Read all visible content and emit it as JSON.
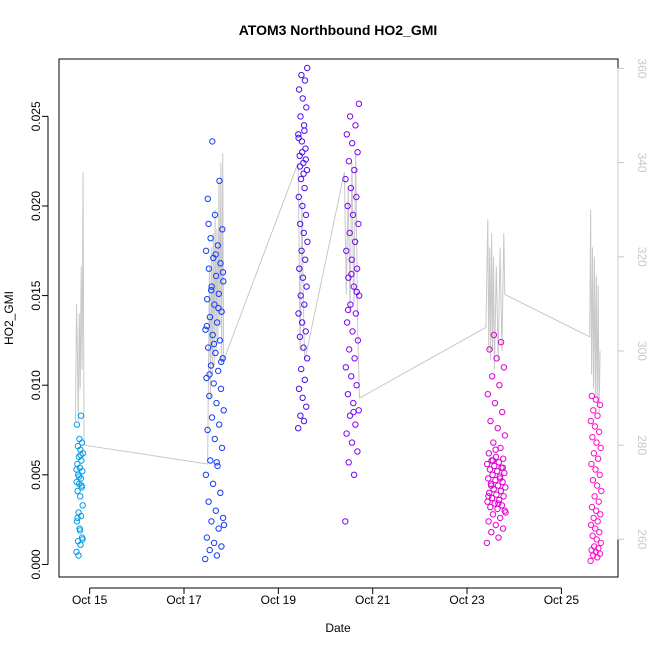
{
  "chart_data": {
    "type": "scatter",
    "title": "ATOM3 Northbound HO2_GMI",
    "xlabel": "Date",
    "ylabel": "HO2_GMI",
    "y2label": "",
    "x_ticks": [
      "Oct 15",
      "Oct 17",
      "Oct 19",
      "Oct 21",
      "Oct 23",
      "Oct 25"
    ],
    "x_tick_days": [
      15,
      17,
      19,
      21,
      23,
      25
    ],
    "xlim_days": [
      14.35,
      26.2
    ],
    "ylim": [
      -0.0007,
      0.0282
    ],
    "y_ticks": [
      "0.000",
      "0.005",
      "0.010",
      "0.015",
      "0.020",
      "0.025"
    ],
    "y_tick_values": [
      0,
      0.005,
      0.01,
      0.015,
      0.02,
      0.025
    ],
    "y2lim": [
      252,
      362
    ],
    "y2_ticks": [
      "260",
      "280",
      "300",
      "320",
      "340",
      "360"
    ],
    "y2_tick_values": [
      260,
      280,
      300,
      320,
      340,
      360
    ],
    "colors": {
      "axis": "#000000",
      "secondary_axis": "#c8c8c8",
      "line": "#c8c8c8",
      "gradient": [
        "#00a0e6",
        "#0050ff",
        "#4010e8",
        "#a000ff",
        "#e000d0",
        "#ff10c8"
      ]
    },
    "series": [
      {
        "role": "scatter",
        "groups": [
          {
            "day_range": [
              14.72,
              14.86
            ],
            "values": [
              0.0007,
              0.0011,
              0.0013,
              0.0015,
              0.002,
              0.0024,
              0.0027,
              0.0029,
              0.0033,
              0.0038,
              0.0041,
              0.0043,
              0.0045,
              0.0046,
              0.0048,
              0.005,
              0.0052,
              0.0054,
              0.0056,
              0.0058,
              0.006,
              0.0062,
              0.0064,
              0.0066,
              0.0068,
              0.007,
              0.0078,
              0.0083,
              0.0005,
              0.0014,
              0.0019,
              0.0026,
              0.0044,
              0.0049,
              0.0053,
              0.0061
            ]
          },
          {
            "day_range": [
              17.45,
              17.85
            ],
            "values": [
              0.0003,
              0.0005,
              0.0008,
              0.001,
              0.0012,
              0.0015,
              0.002,
              0.0024,
              0.0026,
              0.003,
              0.0035,
              0.004,
              0.0045,
              0.005,
              0.0055,
              0.0058,
              0.0065,
              0.007,
              0.0075,
              0.0078,
              0.0082,
              0.0086,
              0.009,
              0.0094,
              0.0098,
              0.0101,
              0.0104,
              0.0108,
              0.0111,
              0.0115,
              0.0118,
              0.0121,
              0.0125,
              0.0128,
              0.0131,
              0.0135,
              0.0138,
              0.0141,
              0.0145,
              0.0148,
              0.0151,
              0.0155,
              0.0158,
              0.0161,
              0.0165,
              0.0168,
              0.0171,
              0.0175,
              0.0178,
              0.0182,
              0.0187,
              0.0195,
              0.0204,
              0.0214,
              0.0236,
              0.0022,
              0.0057,
              0.0106,
              0.0113,
              0.0123,
              0.0133,
              0.0143,
              0.0153,
              0.0163,
              0.0173,
              0.019
            ]
          },
          {
            "day_range": [
              19.42,
              19.62
            ],
            "values": [
              0.0076,
              0.008,
              0.0083,
              0.0088,
              0.0093,
              0.0098,
              0.0103,
              0.0109,
              0.0115,
              0.0121,
              0.0127,
              0.013,
              0.0135,
              0.014,
              0.0145,
              0.015,
              0.0155,
              0.016,
              0.0165,
              0.017,
              0.0175,
              0.018,
              0.0185,
              0.019,
              0.0195,
              0.02,
              0.0205,
              0.021,
              0.0215,
              0.022,
              0.0224,
              0.0228,
              0.0232,
              0.0236,
              0.024,
              0.0245,
              0.025,
              0.0255,
              0.026,
              0.0265,
              0.027,
              0.0273,
              0.0277,
              0.0218,
              0.0222,
              0.0226,
              0.023,
              0.0238,
              0.0242
            ]
          },
          {
            "day_range": [
              20.42,
              20.72
            ],
            "values": [
              0.0024,
              0.005,
              0.0057,
              0.0063,
              0.0068,
              0.0073,
              0.0078,
              0.0083,
              0.0086,
              0.009,
              0.0095,
              0.01,
              0.0105,
              0.011,
              0.0115,
              0.012,
              0.0125,
              0.013,
              0.0135,
              0.014,
              0.0145,
              0.015,
              0.0155,
              0.016,
              0.0165,
              0.017,
              0.0175,
              0.018,
              0.0185,
              0.019,
              0.0195,
              0.02,
              0.0205,
              0.021,
              0.0215,
              0.022,
              0.0225,
              0.023,
              0.0235,
              0.024,
              0.0245,
              0.025,
              0.0257,
              0.0085,
              0.0142,
              0.0152,
              0.0162
            ]
          },
          {
            "day_range": [
              23.42,
              23.82
            ],
            "values": [
              0.0012,
              0.0015,
              0.0018,
              0.002,
              0.0022,
              0.0024,
              0.0026,
              0.0028,
              0.003,
              0.0031,
              0.0032,
              0.0033,
              0.0034,
              0.0035,
              0.0036,
              0.0037,
              0.0038,
              0.0039,
              0.004,
              0.0041,
              0.0042,
              0.0043,
              0.0044,
              0.0045,
              0.0046,
              0.0047,
              0.0048,
              0.0049,
              0.005,
              0.0051,
              0.0052,
              0.0053,
              0.0054,
              0.0055,
              0.0056,
              0.0057,
              0.0058,
              0.0059,
              0.006,
              0.0062,
              0.0065,
              0.0068,
              0.0072,
              0.0076,
              0.008,
              0.0085,
              0.009,
              0.0095,
              0.01,
              0.0105,
              0.011,
              0.0115,
              0.012,
              0.0124,
              0.0128,
              0.0029,
              0.0034,
              0.0044,
              0.0054,
              0.0064,
              0.0038,
              0.0048,
              0.0058
            ]
          },
          {
            "day_range": [
              25.62,
              25.85
            ],
            "values": [
              0.0002,
              0.0004,
              0.0005,
              0.0006,
              0.0007,
              0.0008,
              0.0009,
              0.001,
              0.0012,
              0.0014,
              0.0016,
              0.0018,
              0.002,
              0.0022,
              0.0024,
              0.0026,
              0.0028,
              0.003,
              0.0032,
              0.0035,
              0.0038,
              0.0041,
              0.0044,
              0.0047,
              0.005,
              0.0053,
              0.0056,
              0.0059,
              0.0062,
              0.0065,
              0.0068,
              0.0071,
              0.0074,
              0.0077,
              0.008,
              0.0083,
              0.0086,
              0.0089,
              0.0092,
              0.0094
            ]
          }
        ]
      },
      {
        "role": "line (secondary axis)",
        "points": [
          [
            14.7,
            285
          ],
          [
            14.72,
            310
          ],
          [
            14.74,
            300
          ],
          [
            14.76,
            285
          ],
          [
            14.78,
            308
          ],
          [
            14.8,
            292
          ],
          [
            14.82,
            318
          ],
          [
            14.84,
            296
          ],
          [
            14.86,
            338
          ],
          [
            14.88,
            280
          ],
          [
            17.5,
            276
          ],
          [
            17.54,
            318
          ],
          [
            17.56,
            290
          ],
          [
            17.58,
            322
          ],
          [
            17.6,
            295
          ],
          [
            17.62,
            325
          ],
          [
            17.64,
            297
          ],
          [
            17.66,
            330
          ],
          [
            17.68,
            300
          ],
          [
            17.7,
            326
          ],
          [
            17.72,
            302
          ],
          [
            17.74,
            336
          ],
          [
            17.76,
            305
          ],
          [
            17.78,
            340
          ],
          [
            17.8,
            297
          ],
          [
            17.82,
            342
          ],
          [
            17.84,
            298
          ],
          [
            19.42,
            340
          ],
          [
            19.46,
            300
          ],
          [
            19.5,
            332
          ],
          [
            19.54,
            305
          ],
          [
            19.56,
            298
          ],
          [
            20.4,
            338
          ],
          [
            20.44,
            312
          ],
          [
            20.48,
            335
          ],
          [
            20.52,
            308
          ],
          [
            20.56,
            340
          ],
          [
            20.6,
            310
          ],
          [
            20.64,
            342
          ],
          [
            20.68,
            305
          ],
          [
            20.72,
            290
          ],
          [
            23.4,
            305
          ],
          [
            23.44,
            328
          ],
          [
            23.46,
            300
          ],
          [
            23.48,
            322
          ],
          [
            23.5,
            298
          ],
          [
            23.52,
            325
          ],
          [
            23.54,
            300
          ],
          [
            23.56,
            320
          ],
          [
            23.58,
            296
          ],
          [
            23.62,
            318
          ],
          [
            23.66,
            298
          ],
          [
            23.7,
            322
          ],
          [
            23.74,
            300
          ],
          [
            23.78,
            325
          ],
          [
            23.8,
            312
          ],
          [
            25.6,
            303
          ],
          [
            25.62,
            330
          ],
          [
            25.64,
            295
          ],
          [
            25.66,
            322
          ],
          [
            25.68,
            292
          ],
          [
            25.7,
            320
          ],
          [
            25.72,
            290
          ],
          [
            25.74,
            316
          ],
          [
            25.76,
            288
          ],
          [
            25.78,
            314
          ],
          [
            25.8,
            287
          ],
          [
            25.82,
            300
          ]
        ]
      }
    ]
  }
}
